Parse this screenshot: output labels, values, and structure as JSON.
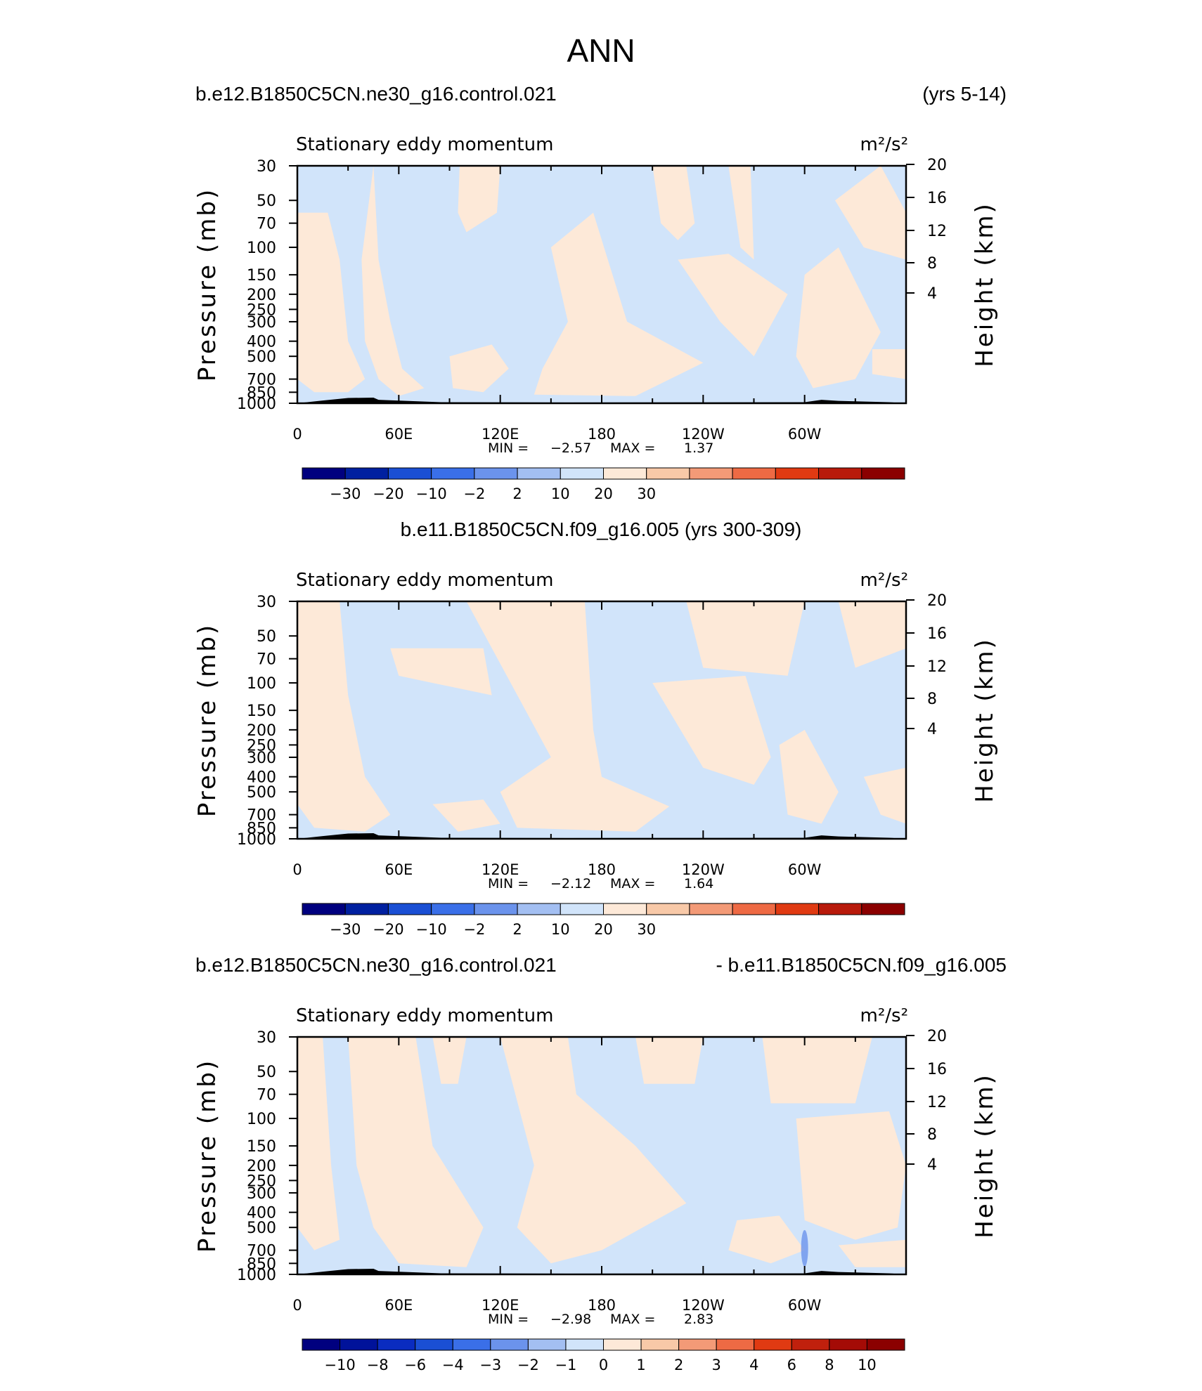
{
  "figure": {
    "title": "ANN"
  },
  "panels": [
    {
      "case_left": "b.e12.B1850C5CN.ne30_g16.control.021",
      "case_right": "(yrs 5-14)",
      "case_center": "",
      "variable": "Stationary eddy momentum",
      "units": "m²/s²",
      "stats": {
        "min_label": "MIN =",
        "min": "−2.57",
        "max_label": "MAX =",
        "max": "1.37"
      },
      "colorbar_labels": [
        "−30",
        "−20",
        "−10",
        "−2",
        "2",
        "10",
        "20",
        "30"
      ]
    },
    {
      "case_left": "",
      "case_right": "",
      "case_center": "b.e11.B1850C5CN.f09_g16.005 (yrs 300-309)",
      "variable": "Stationary eddy momentum",
      "units": "m²/s²",
      "stats": {
        "min_label": "MIN =",
        "min": "−2.12",
        "max_label": "MAX =",
        "max": "1.64"
      },
      "colorbar_labels": [
        "−30",
        "−20",
        "−10",
        "−2",
        "2",
        "10",
        "20",
        "30"
      ]
    },
    {
      "case_left": "b.e12.B1850C5CN.ne30_g16.control.021",
      "case_right": "- b.e11.B1850C5CN.f09_g16.005",
      "case_center": "",
      "variable": "Stationary eddy momentum",
      "units": "m²/s²",
      "stats": {
        "min_label": "MIN =",
        "min": "−2.98",
        "max_label": "MAX =",
        "max": "2.83"
      },
      "colorbar_labels": [
        "−10",
        "−8",
        "−6",
        "−4",
        "−3",
        "−2",
        "−1",
        "0",
        "1",
        "2",
        "3",
        "4",
        "6",
        "8",
        "10"
      ]
    }
  ],
  "colors": {
    "palette": [
      "#00007f",
      "#0020a0",
      "#1a4fd4",
      "#3a6fe8",
      "#6b93ec",
      "#a3bff2",
      "#d1e4fa",
      "#fde9d8",
      "#f8c9a8",
      "#f39a77",
      "#ee6a44",
      "#e03a12",
      "#b81a0b",
      "#8b0000"
    ],
    "palette_diff": [
      "#00007f",
      "#00129a",
      "#0a2cc0",
      "#1a4fd4",
      "#3a6fe8",
      "#6b93ec",
      "#a3bff2",
      "#d1e4fa",
      "#fde9d8",
      "#f8c9a8",
      "#f39a77",
      "#ee6a44",
      "#e03a12",
      "#c0200d",
      "#a40b06",
      "#8b0000"
    ],
    "positive_fill": "#fde9d8",
    "negative_fill": "#d1e4fa",
    "topography": "#000000"
  },
  "chart_data": [
    {
      "type": "heatmap",
      "title": "Stationary eddy momentum",
      "xlabel": "",
      "ylabel": "Pressure (mb)",
      "y2label": "Height (km)",
      "xticks": [
        "0",
        "60E",
        "120E",
        "180",
        "120W",
        "60W"
      ],
      "yticks": [
        "30",
        "50",
        "70",
        "100",
        "150",
        "200",
        "250",
        "300",
        "400",
        "500",
        "700",
        "850",
        "1000"
      ],
      "y2ticks": [
        "4",
        "8",
        "12",
        "16",
        "20"
      ],
      "xlim": [
        0,
        360
      ],
      "ylim": [
        1000,
        30
      ],
      "y_scale": "log",
      "min": -2.57,
      "max": 1.37,
      "contour_levels": [
        -30,
        -20,
        -10,
        -2,
        2,
        10,
        20,
        30
      ]
    },
    {
      "type": "heatmap",
      "title": "Stationary eddy momentum",
      "xlabel": "",
      "ylabel": "Pressure (mb)",
      "y2label": "Height (km)",
      "xticks": [
        "0",
        "60E",
        "120E",
        "180",
        "120W",
        "60W"
      ],
      "yticks": [
        "30",
        "50",
        "70",
        "100",
        "150",
        "200",
        "250",
        "300",
        "400",
        "500",
        "700",
        "850",
        "1000"
      ],
      "y2ticks": [
        "4",
        "8",
        "12",
        "16",
        "20"
      ],
      "xlim": [
        0,
        360
      ],
      "ylim": [
        1000,
        30
      ],
      "y_scale": "log",
      "min": -2.12,
      "max": 1.64,
      "contour_levels": [
        -30,
        -20,
        -10,
        -2,
        2,
        10,
        20,
        30
      ]
    },
    {
      "type": "heatmap",
      "title": "Stationary eddy momentum",
      "xlabel": "",
      "ylabel": "Pressure (mb)",
      "y2label": "Height (km)",
      "xticks": [
        "0",
        "60E",
        "120E",
        "180",
        "120W",
        "60W"
      ],
      "yticks": [
        "30",
        "50",
        "70",
        "100",
        "150",
        "200",
        "250",
        "300",
        "400",
        "500",
        "700",
        "850",
        "1000"
      ],
      "y2ticks": [
        "4",
        "8",
        "12",
        "16",
        "20"
      ],
      "xlim": [
        0,
        360
      ],
      "ylim": [
        1000,
        30
      ],
      "y_scale": "log",
      "min": -2.98,
      "max": 2.83,
      "contour_levels": [
        -10,
        -8,
        -6,
        -4,
        -3,
        -2,
        -1,
        0,
        1,
        2,
        3,
        4,
        6,
        8,
        10
      ]
    }
  ]
}
